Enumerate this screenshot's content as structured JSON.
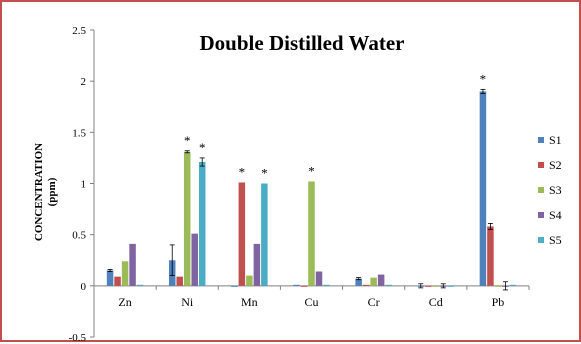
{
  "chart_data": {
    "type": "bar",
    "title": "Double Distilled Water",
    "ylabel": "CONCENTRATION",
    "ylabel_unit": "(ppm)",
    "xlabel": "",
    "ylim": [
      -0.5,
      2.5
    ],
    "yticks": [
      -0.5,
      0,
      0.5,
      1,
      1.5,
      2,
      2.5
    ],
    "ytick_labels": [
      "-0.5",
      "0",
      "0.5",
      "1",
      "1.5",
      "2",
      "2.5"
    ],
    "grid": false,
    "legend_position": "right",
    "categories": [
      "Zn",
      "Ni",
      "Mn",
      "Cu",
      "Cr",
      "Cd",
      "Pb"
    ],
    "series": [
      {
        "name": "S1",
        "color": "#4f81bd",
        "values": [
          0.15,
          0.25,
          0.0,
          0.01,
          0.07,
          0.0,
          1.9
        ],
        "errors": [
          0.01,
          0.15,
          0.0,
          0.0,
          0.01,
          0.02,
          0.02
        ],
        "significant": [
          false,
          false,
          false,
          false,
          false,
          false,
          true
        ]
      },
      {
        "name": "S2",
        "color": "#c0504d",
        "values": [
          0.09,
          0.09,
          1.01,
          0.0,
          0.01,
          0.0,
          0.58
        ],
        "errors": [
          0.0,
          0.0,
          0.0,
          0.0,
          0.0,
          0.0,
          0.03
        ],
        "significant": [
          false,
          false,
          true,
          false,
          false,
          false,
          false
        ]
      },
      {
        "name": "S3",
        "color": "#9bbb59",
        "values": [
          0.24,
          1.31,
          0.1,
          1.02,
          0.08,
          0.0,
          0.0
        ],
        "errors": [
          0.0,
          0.01,
          0.0,
          0.0,
          0.0,
          0.0,
          0.0
        ],
        "significant": [
          false,
          true,
          false,
          true,
          false,
          false,
          false
        ]
      },
      {
        "name": "S4",
        "color": "#8064a2",
        "values": [
          0.41,
          0.51,
          0.41,
          0.14,
          0.11,
          0.0,
          0.0
        ],
        "errors": [
          0.0,
          0.0,
          0.0,
          0.0,
          0.0,
          0.02,
          0.04
        ],
        "significant": [
          false,
          false,
          false,
          false,
          false,
          false,
          false
        ]
      },
      {
        "name": "S5",
        "color": "#4bacc6",
        "values": [
          0.01,
          1.21,
          1.0,
          0.01,
          0.01,
          0.0,
          0.01
        ],
        "errors": [
          0.0,
          0.04,
          0.0,
          0.0,
          0.0,
          0.0,
          0.0
        ],
        "significant": [
          false,
          true,
          true,
          false,
          false,
          false,
          false
        ]
      }
    ],
    "annotation_symbol": "*"
  }
}
